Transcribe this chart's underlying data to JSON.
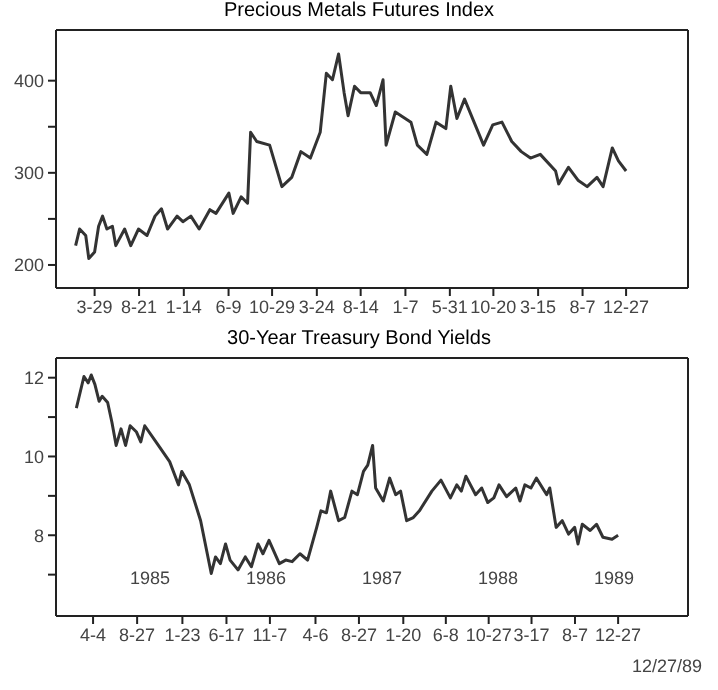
{
  "chart_data": [
    {
      "type": "line",
      "title": "Precious Metals Futures Index",
      "color": "#333333",
      "x": [
        "1985-01-26",
        "1985-02-08",
        "1985-02-28",
        "1985-03-10",
        "1985-03-29",
        "1985-04-11",
        "1985-04-24",
        "1985-05-08",
        "1985-05-26",
        "1985-06-06",
        "1985-07-05",
        "1985-07-25",
        "1985-08-19",
        "1985-09-16",
        "1985-10-12",
        "1985-11-02",
        "1985-11-22",
        "1985-12-23",
        "1986-01-11",
        "1986-02-06",
        "1986-03-05",
        "1986-04-09",
        "1986-04-29",
        "1986-06-10",
        "1986-06-24",
        "1986-07-20",
        "1986-08-10",
        "1986-08-20",
        "1986-09-09",
        "1986-10-21",
        "1986-11-30",
        "1987-01-01",
        "1987-01-31",
        "1987-03-03",
        "1987-04-04",
        "1987-04-24",
        "1987-05-14",
        "1987-06-03",
        "1987-06-21",
        "1987-07-04",
        "1987-07-25",
        "1987-08-14",
        "1987-09-14",
        "1987-10-04",
        "1987-10-26",
        "1987-11-05",
        "1987-12-05",
        "1988-01-25",
        "1988-02-15",
        "1988-03-17",
        "1988-04-16",
        "1988-05-18",
        "1988-06-03",
        "1988-06-23",
        "1988-07-18",
        "1988-08-18",
        "1988-09-18",
        "1988-10-18",
        "1988-11-17",
        "1988-12-19",
        "1989-01-19",
        "1989-02-18",
        "1989-03-22",
        "1989-05-11",
        "1989-05-21",
        "1989-06-22",
        "1989-07-23",
        "1989-08-22",
        "1989-09-23",
        "1989-10-13",
        "1989-11-12",
        "1989-12-02",
        "1989-12-27"
      ],
      "values": [
        221,
        239,
        232,
        207,
        214,
        242,
        253,
        239,
        242,
        221,
        239,
        221,
        239,
        232,
        253,
        261,
        239,
        253,
        247,
        253,
        239,
        260,
        256,
        278,
        256,
        274,
        267,
        344,
        334,
        330,
        285,
        295,
        323,
        316,
        344,
        408,
        401,
        429,
        387,
        362,
        394,
        387,
        387,
        373,
        401,
        330,
        366,
        355,
        330,
        320,
        355,
        348,
        394,
        359,
        380,
        355,
        330,
        352,
        355,
        334,
        323,
        316,
        320,
        302,
        288,
        306,
        292,
        285,
        295,
        285,
        327,
        313,
        302
      ],
      "xlim": [
        "1984-11-23",
        "1990-07-17"
      ],
      "xticks": [
        {
          "value": "1985-03-29",
          "label": "3-29"
        },
        {
          "value": "1985-08-21",
          "label": "8-21"
        },
        {
          "value": "1986-01-14",
          "label": "1-14"
        },
        {
          "value": "1986-06-09",
          "label": "6-9"
        },
        {
          "value": "1986-10-29",
          "label": "10-29"
        },
        {
          "value": "1987-03-24",
          "label": "3-24"
        },
        {
          "value": "1987-08-14",
          "label": "8-14"
        },
        {
          "value": "1988-01-07",
          "label": "1-7"
        },
        {
          "value": "1988-05-31",
          "label": "5-31"
        },
        {
          "value": "1988-10-20",
          "label": "10-20"
        },
        {
          "value": "1989-03-15",
          "label": "3-15"
        },
        {
          "value": "1989-08-07",
          "label": "8-7"
        },
        {
          "value": "1989-12-27",
          "label": "12-27"
        }
      ],
      "ylim": [
        175,
        455
      ],
      "yticks": [
        200,
        {
          "value": 250,
          "label": null
        },
        300,
        {
          "value": 350,
          "label": null
        },
        400
      ]
    },
    {
      "type": "line",
      "title": "30-Year Treasury Bond Yields",
      "color": "#333333",
      "x": [
        "1985-02-08",
        "1985-03-05",
        "1985-03-19",
        "1985-03-29",
        "1985-04-10",
        "1985-04-24",
        "1985-05-04",
        "1985-05-22",
        "1985-06-05",
        "1985-06-19",
        "1985-07-05",
        "1985-07-20",
        "1985-08-04",
        "1985-08-25",
        "1985-09-08",
        "1985-09-21",
        "1985-11-05",
        "1985-12-12",
        "1986-01-10",
        "1986-01-21",
        "1986-02-15",
        "1986-03-24",
        "1986-04-28",
        "1986-05-12",
        "1986-05-28",
        "1986-06-14",
        "1986-06-29",
        "1986-07-25",
        "1986-08-18",
        "1986-09-07",
        "1986-09-29",
        "1986-10-15",
        "1986-11-04",
        "1986-12-08",
        "1986-12-29",
        "1987-01-19",
        "1987-02-14",
        "1987-03-11",
        "1987-04-10",
        "1987-04-24",
        "1987-05-12",
        "1987-05-26",
        "1987-06-21",
        "1987-07-11",
        "1987-08-04",
        "1987-08-22",
        "1987-09-11",
        "1987-09-25",
        "1987-10-11",
        "1987-10-21",
        "1987-11-15",
        "1987-12-06",
        "1987-12-26",
        "1988-01-11",
        "1988-01-31",
        "1988-02-22",
        "1988-03-13",
        "1988-04-23",
        "1988-05-23",
        "1988-06-23",
        "1988-07-14",
        "1988-07-29",
        "1988-08-13",
        "1988-09-14",
        "1988-10-04",
        "1988-10-24",
        "1988-11-13",
        "1988-11-30",
        "1988-12-25",
        "1989-01-24",
        "1989-02-07",
        "1989-02-23",
        "1989-03-15",
        "1989-04-02",
        "1989-05-06",
        "1989-05-16",
        "1989-06-06",
        "1989-06-26",
        "1989-07-17",
        "1989-08-06",
        "1989-08-17",
        "1989-08-31",
        "1989-09-26",
        "1989-10-17",
        "1989-11-07",
        "1989-12-07",
        "1989-12-27"
      ],
      "values": [
        11.23,
        12.03,
        11.87,
        12.07,
        11.83,
        11.4,
        11.53,
        11.37,
        10.87,
        10.28,
        10.7,
        10.28,
        10.78,
        10.62,
        10.37,
        10.78,
        10.28,
        9.87,
        9.28,
        9.62,
        9.28,
        8.37,
        7.03,
        7.45,
        7.28,
        7.78,
        7.37,
        7.12,
        7.45,
        7.2,
        7.78,
        7.53,
        7.87,
        7.28,
        7.37,
        7.33,
        7.53,
        7.37,
        8.2,
        8.62,
        8.57,
        9.12,
        8.37,
        8.45,
        9.12,
        9.03,
        9.62,
        9.78,
        10.28,
        9.2,
        8.87,
        9.45,
        9.03,
        9.12,
        8.37,
        8.45,
        8.62,
        9.12,
        9.4,
        8.95,
        9.28,
        9.12,
        9.5,
        9.03,
        9.2,
        8.83,
        8.95,
        9.28,
        8.98,
        9.2,
        8.87,
        9.28,
        9.2,
        9.45,
        9.03,
        9.2,
        8.2,
        8.37,
        8.03,
        8.2,
        7.78,
        8.28,
        8.12,
        8.28,
        7.95,
        7.9,
        8.0
      ],
      "xlim": [
        "1984-12-03",
        "1990-08-14"
      ],
      "xticks": [
        {
          "value": "1985-04-04",
          "label": "4-4"
        },
        {
          "value": "1985-08-27",
          "label": "8-27"
        },
        {
          "value": "1986-01-23",
          "label": "1-23"
        },
        {
          "value": "1986-06-17",
          "label": "6-17"
        },
        {
          "value": "1986-11-07",
          "label": "11-7"
        },
        {
          "value": "1987-04-06",
          "label": "4-6"
        },
        {
          "value": "1987-08-27",
          "label": "8-27"
        },
        {
          "value": "1988-01-20",
          "label": "1-20"
        },
        {
          "value": "1988-06-08",
          "label": "6-8"
        },
        {
          "value": "1988-10-27",
          "label": "10-27"
        },
        {
          "value": "1989-03-17",
          "label": "3-17"
        },
        {
          "value": "1989-08-07",
          "label": "8-7"
        },
        {
          "value": "1989-12-27",
          "label": "12-27"
        }
      ],
      "ylim": [
        5.95,
        12.5
      ],
      "yticks": [
        {
          "value": 7,
          "label": null
        },
        8,
        {
          "value": 9,
          "label": null
        },
        10,
        {
          "value": 11,
          "label": null
        },
        12
      ],
      "annotations": [
        "1985",
        "1986",
        "1987",
        "1988",
        "1989",
        "12/27/89"
      ]
    }
  ]
}
